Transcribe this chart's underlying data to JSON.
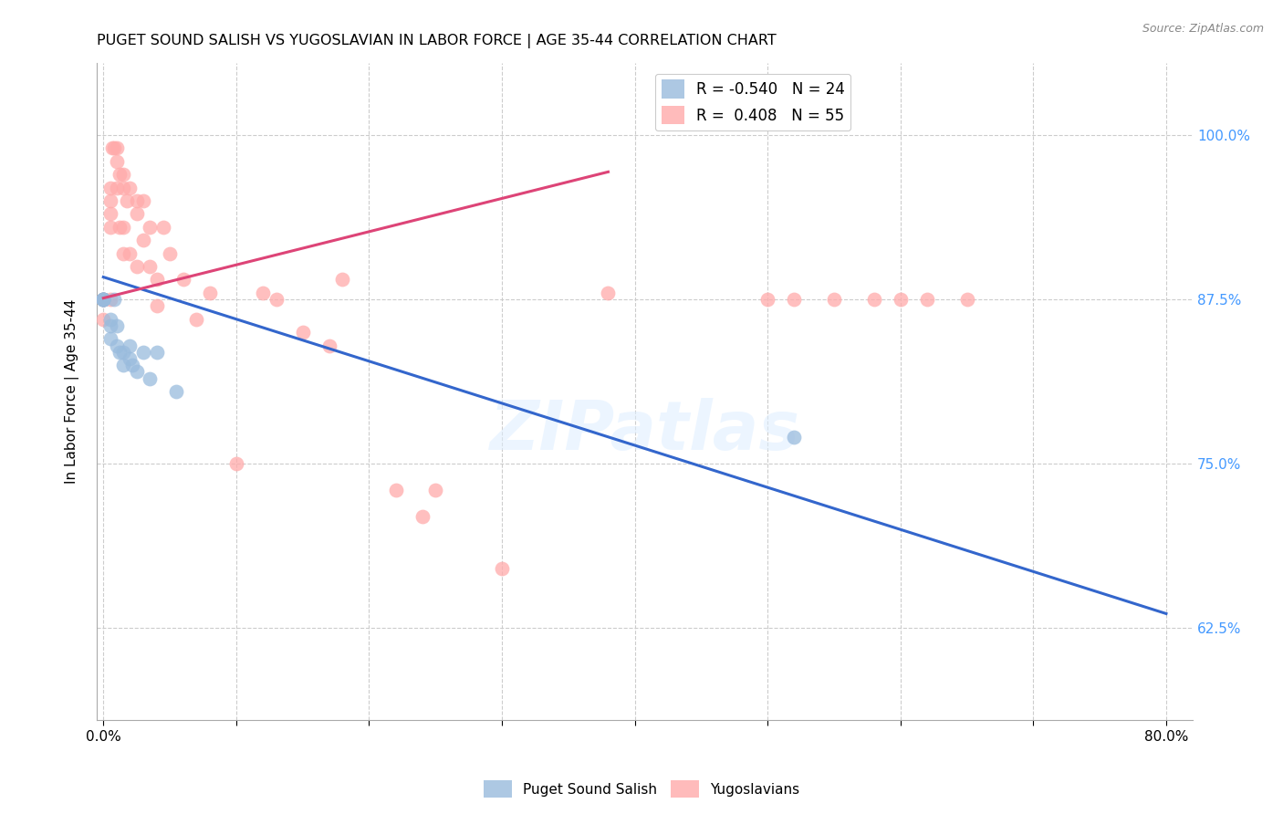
{
  "title": "PUGET SOUND SALISH VS YUGOSLAVIAN IN LABOR FORCE | AGE 35-44 CORRELATION CHART",
  "source": "Source: ZipAtlas.com",
  "ylabel": "In Labor Force | Age 35-44",
  "x_ticks": [
    0.0,
    0.1,
    0.2,
    0.3,
    0.4,
    0.5,
    0.6,
    0.7,
    0.8
  ],
  "y_ticks": [
    0.625,
    0.75,
    0.875,
    1.0
  ],
  "xlim": [
    -0.005,
    0.82
  ],
  "ylim": [
    0.555,
    1.055
  ],
  "blue_color": "#99BBDD",
  "pink_color": "#FFAAAA",
  "blue_line_color": "#3366CC",
  "pink_line_color": "#DD4477",
  "legend_blue_R": "-0.540",
  "legend_blue_N": "24",
  "legend_pink_R": " 0.408",
  "legend_pink_N": "55",
  "watermark": "ZIPatlas",
  "blue_scatter_x": [
    0.0,
    0.0,
    0.0,
    0.0,
    0.0,
    0.0,
    0.005,
    0.005,
    0.005,
    0.008,
    0.01,
    0.01,
    0.012,
    0.015,
    0.015,
    0.02,
    0.02,
    0.022,
    0.025,
    0.03,
    0.035,
    0.04,
    0.055,
    0.52
  ],
  "blue_scatter_y": [
    0.875,
    0.875,
    0.875,
    0.875,
    0.875,
    0.875,
    0.86,
    0.855,
    0.845,
    0.875,
    0.855,
    0.84,
    0.835,
    0.835,
    0.825,
    0.84,
    0.83,
    0.825,
    0.82,
    0.835,
    0.815,
    0.835,
    0.805,
    0.77
  ],
  "pink_scatter_x": [
    0.0,
    0.0,
    0.0,
    0.0,
    0.005,
    0.005,
    0.005,
    0.005,
    0.005,
    0.007,
    0.008,
    0.01,
    0.01,
    0.01,
    0.012,
    0.012,
    0.015,
    0.015,
    0.015,
    0.015,
    0.018,
    0.02,
    0.02,
    0.025,
    0.025,
    0.025,
    0.03,
    0.03,
    0.035,
    0.035,
    0.04,
    0.04,
    0.045,
    0.05,
    0.06,
    0.07,
    0.08,
    0.1,
    0.12,
    0.13,
    0.15,
    0.17,
    0.18,
    0.22,
    0.24,
    0.25,
    0.3,
    0.38,
    0.5,
    0.52,
    0.55,
    0.58,
    0.6,
    0.62,
    0.65
  ],
  "pink_scatter_y": [
    0.875,
    0.875,
    0.875,
    0.86,
    0.96,
    0.95,
    0.94,
    0.93,
    0.875,
    0.99,
    0.99,
    0.99,
    0.98,
    0.96,
    0.97,
    0.93,
    0.97,
    0.96,
    0.93,
    0.91,
    0.95,
    0.96,
    0.91,
    0.95,
    0.94,
    0.9,
    0.95,
    0.92,
    0.93,
    0.9,
    0.89,
    0.87,
    0.93,
    0.91,
    0.89,
    0.86,
    0.88,
    0.75,
    0.88,
    0.875,
    0.85,
    0.84,
    0.89,
    0.73,
    0.71,
    0.73,
    0.67,
    0.88,
    0.875,
    0.875,
    0.875,
    0.875,
    0.875,
    0.875,
    0.875
  ],
  "blue_line_x": [
    0.0,
    0.8
  ],
  "blue_line_y": [
    0.892,
    0.636
  ],
  "pink_line_x": [
    0.0,
    0.38
  ],
  "pink_line_y": [
    0.876,
    0.972
  ]
}
